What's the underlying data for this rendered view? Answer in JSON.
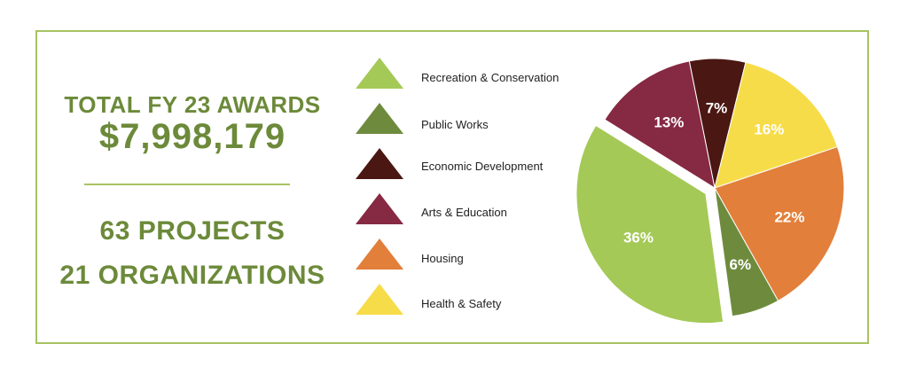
{
  "summary": {
    "total_label": "TOTAL FY 23 AWARDS",
    "total_amount": "$7,998,179",
    "projects": "63 PROJECTS",
    "organizations": "21 ORGANIZATIONS"
  },
  "colors": {
    "frame": "#a7c361",
    "text_green": "#6c8a3a"
  },
  "chart_data": {
    "type": "pie",
    "legend_placement": "left",
    "slices": [
      {
        "label": "Recreation & Conservation",
        "value": 36,
        "display": "36%",
        "color": "#a4c957"
      },
      {
        "label": "Public Works",
        "value": 6,
        "display": "6%",
        "color": "#6e8b3d"
      },
      {
        "label": "Economic Development",
        "value": 7,
        "display": "7%",
        "color": "#4a1712"
      },
      {
        "label": "Arts & Education",
        "value": 13,
        "display": "13%",
        "color": "#862943"
      },
      {
        "label": "Housing",
        "value": 22,
        "display": "22%",
        "color": "#e27f3a"
      },
      {
        "label": "Health & Safety",
        "value": 16,
        "display": "16%",
        "color": "#f7dc4a"
      }
    ]
  }
}
